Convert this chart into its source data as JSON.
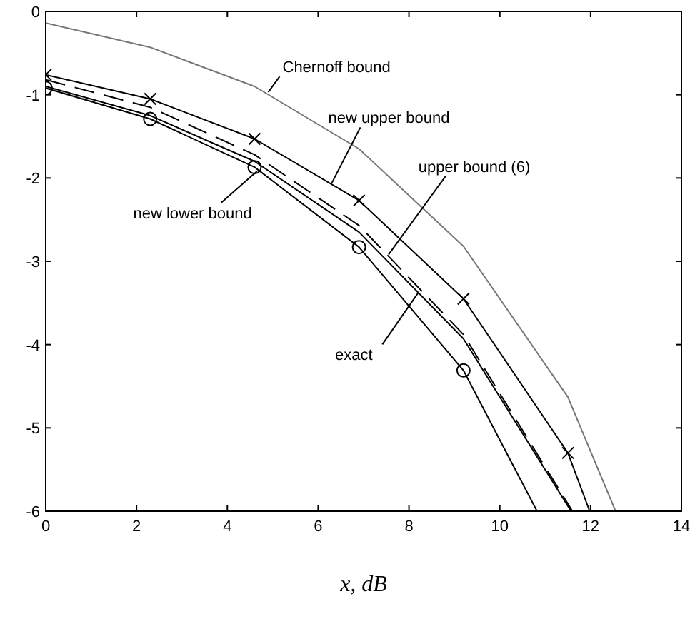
{
  "chart_data": {
    "type": "line",
    "xlabel": "x, dB",
    "xlim": [
      0,
      14
    ],
    "ylim": [
      -6,
      0
    ],
    "xticks": [
      0,
      2,
      4,
      6,
      8,
      10,
      12,
      14
    ],
    "yticks": [
      0,
      -1,
      -2,
      -3,
      -4,
      -5,
      -6
    ],
    "grid": false,
    "series": [
      {
        "color": "#777777",
        "marker": "none",
        "line_style": "solid",
        "x": [
          0,
          2.3,
          4.6,
          6.9,
          9.2,
          11.5,
          12.55
        ],
        "values": [
          -0.14,
          -0.43,
          -0.9,
          -1.65,
          -2.82,
          -4.63,
          -6
        ]
      },
      {
        "color": "#000000",
        "marker": "cross",
        "line_style": "solid",
        "x": [
          0,
          2.3,
          4.6,
          6.9,
          9.2,
          11.5,
          11.98
        ],
        "values": [
          -0.76,
          -1.05,
          -1.53,
          -2.27,
          -3.45,
          -5.3,
          -6
        ]
      },
      {
        "color": "#000000",
        "marker": "none",
        "line_style": "dashed",
        "x": [
          0,
          2.3,
          4.6,
          6.9,
          9.2,
          11.6
        ],
        "values": [
          -0.82,
          -1.15,
          -1.72,
          -2.57,
          -3.88,
          -6
        ]
      },
      {
        "color": "#000000",
        "marker": "none",
        "line_style": "solid",
        "x": [
          0,
          2.3,
          4.6,
          6.9,
          9.2,
          11.57
        ],
        "values": [
          -0.9,
          -1.25,
          -1.8,
          -2.65,
          -3.93,
          -6
        ]
      },
      {
        "color": "#000000",
        "marker": "circle",
        "line_style": "solid",
        "x": [
          0,
          2.3,
          4.6,
          6.9,
          9.2,
          10.82
        ],
        "values": [
          -0.92,
          -1.29,
          -1.87,
          -2.83,
          -4.31,
          -6
        ]
      }
    ],
    "annotations": [
      {
        "text": "Chernoff bound",
        "x": 4.9,
        "y": -0.97
      },
      {
        "text": "new upper bound",
        "x": 6.3,
        "y": -2.06
      },
      {
        "text": "upper bound (6)",
        "x": 7.55,
        "y": -2.92
      },
      {
        "text": "new lower bound",
        "x": 4.65,
        "y": -1.92
      },
      {
        "text": "exact",
        "x": 8.2,
        "y": -3.38
      }
    ]
  }
}
